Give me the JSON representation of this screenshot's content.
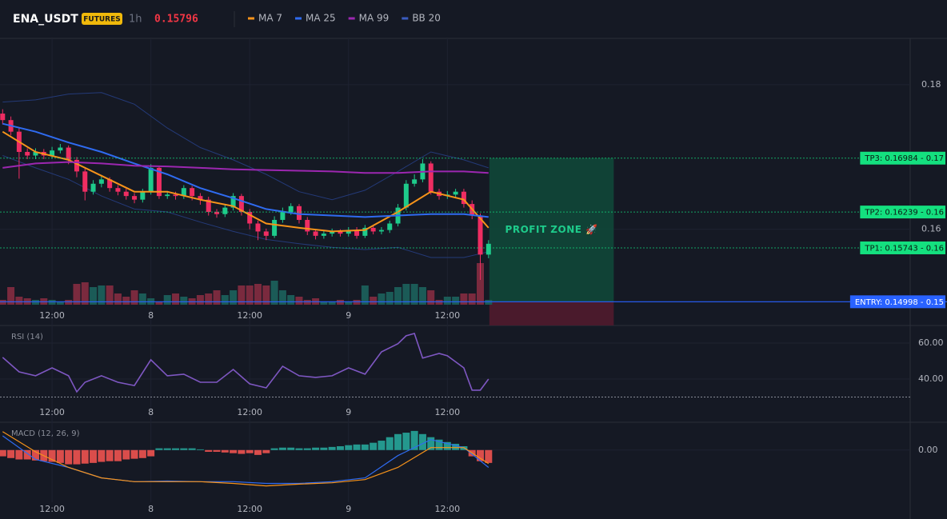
{
  "header": {
    "symbol": "ENA_USDT",
    "badge": "FUTURES",
    "interval": "1h",
    "price": "0.15796"
  },
  "chart_data": [
    {
      "type": "candlestick",
      "xlim": [
        -0.32,
        110.2
      ],
      "xticks": [
        {
          "value": 6,
          "label": "12:00"
        },
        {
          "value": 18,
          "label": "8"
        },
        {
          "value": 30,
          "label": "12:00"
        },
        {
          "value": 42,
          "label": "9"
        },
        {
          "value": 54,
          "label": "12:00"
        }
      ],
      "ylim": [
        0.1467,
        0.1864
      ],
      "yticks": [
        0.16,
        0.18
      ],
      "up_color": "#1ecb8b",
      "down_color": "#ef2d62",
      "open": [
        0.176,
        0.1751,
        0.1735,
        0.1707,
        0.1702,
        0.1707,
        0.1702,
        0.1709,
        0.1713,
        0.1696,
        0.168,
        0.1652,
        0.1663,
        0.1669,
        0.1657,
        0.1652,
        0.1646,
        0.1641,
        0.1652,
        0.1685,
        0.1646,
        0.1648,
        0.1646,
        0.1657,
        0.1646,
        0.1641,
        0.1624,
        0.1621,
        0.163,
        0.1646,
        0.1624,
        0.1608,
        0.1597,
        0.1591,
        0.1613,
        0.1624,
        0.1632,
        0.1613,
        0.1597,
        0.1591,
        0.1594,
        0.1597,
        0.1594,
        0.1599,
        0.1591,
        0.1602,
        0.1597,
        0.1599,
        0.1608,
        0.163,
        0.1663,
        0.1669,
        0.1691,
        0.1652,
        0.1646,
        0.1648,
        0.1652,
        0.1635,
        0.1619,
        0.1565
      ],
      "high": [
        0.1766,
        0.1756,
        0.174,
        0.1712,
        0.1712,
        0.1711,
        0.1714,
        0.1718,
        0.1716,
        0.17,
        0.1684,
        0.1668,
        0.1675,
        0.1672,
        0.1661,
        0.1656,
        0.165,
        0.1656,
        0.169,
        0.1688,
        0.1653,
        0.1652,
        0.1661,
        0.166,
        0.165,
        0.1645,
        0.1628,
        0.1635,
        0.165,
        0.1649,
        0.1628,
        0.1612,
        0.1601,
        0.1618,
        0.163,
        0.1636,
        0.1635,
        0.1617,
        0.16,
        0.1598,
        0.1601,
        0.16,
        0.1603,
        0.1603,
        0.1606,
        0.1605,
        0.1603,
        0.1612,
        0.1635,
        0.1668,
        0.1676,
        0.1697,
        0.1694,
        0.1656,
        0.1653,
        0.1656,
        0.1656,
        0.164,
        0.1622,
        0.1585
      ],
      "low": [
        0.1745,
        0.173,
        0.167,
        0.1697,
        0.1697,
        0.1697,
        0.1698,
        0.1705,
        0.169,
        0.1672,
        0.164,
        0.1648,
        0.1658,
        0.1652,
        0.1647,
        0.1641,
        0.1636,
        0.1637,
        0.1648,
        0.1642,
        0.1642,
        0.1641,
        0.1642,
        0.164,
        0.1634,
        0.1619,
        0.1616,
        0.1617,
        0.1626,
        0.1619,
        0.16,
        0.1585,
        0.1585,
        0.1588,
        0.1609,
        0.162,
        0.1608,
        0.1592,
        0.1586,
        0.1587,
        0.159,
        0.159,
        0.159,
        0.1587,
        0.1588,
        0.1593,
        0.1593,
        0.1595,
        0.1604,
        0.1626,
        0.1659,
        0.1665,
        0.1648,
        0.1641,
        0.1642,
        0.1644,
        0.163,
        0.1614,
        0.153,
        0.156
      ],
      "close": [
        0.1751,
        0.1735,
        0.1707,
        0.1702,
        0.1707,
        0.1702,
        0.1709,
        0.1713,
        0.1696,
        0.168,
        0.1652,
        0.1663,
        0.1669,
        0.1657,
        0.1652,
        0.1646,
        0.1641,
        0.1652,
        0.1685,
        0.1646,
        0.1648,
        0.1646,
        0.1657,
        0.1646,
        0.1641,
        0.1624,
        0.1621,
        0.163,
        0.1646,
        0.1624,
        0.1608,
        0.1597,
        0.1591,
        0.1613,
        0.1624,
        0.1632,
        0.1613,
        0.1597,
        0.1591,
        0.1594,
        0.1597,
        0.1594,
        0.1599,
        0.1591,
        0.1602,
        0.1597,
        0.1599,
        0.1608,
        0.163,
        0.1663,
        0.1669,
        0.1691,
        0.1652,
        0.1646,
        0.1648,
        0.1652,
        0.1635,
        0.1619,
        0.1565,
        0.158
      ],
      "volume": [
        6,
        22,
        10,
        8,
        6,
        8,
        6,
        4,
        6,
        26,
        28,
        22,
        24,
        24,
        14,
        10,
        18,
        14,
        8,
        4,
        12,
        14,
        10,
        8,
        12,
        14,
        18,
        12,
        18,
        24,
        24,
        26,
        24,
        30,
        18,
        12,
        10,
        6,
        8,
        4,
        4,
        6,
        4,
        6,
        24,
        10,
        14,
        16,
        22,
        26,
        26,
        22,
        18,
        6,
        10,
        10,
        14,
        14,
        52,
        6
      ],
      "volume_lim": [
        0,
        100
      ],
      "series": [
        {
          "name": "MA 7",
          "color": "#f7931a",
          "x": [
            0,
            4,
            8,
            12,
            16,
            20,
            24,
            28,
            32,
            36,
            40,
            44,
            48,
            52,
            56,
            59
          ],
          "values": [
            0.1735,
            0.1707,
            0.1696,
            0.1674,
            0.1652,
            0.1652,
            0.1641,
            0.1632,
            0.1608,
            0.1602,
            0.1597,
            0.1599,
            0.1624,
            0.1652,
            0.1641,
            0.1602
          ]
        },
        {
          "name": "MA 25",
          "color": "#2f6bf0",
          "x": [
            0,
            4,
            8,
            12,
            16,
            20,
            24,
            28,
            32,
            36,
            40,
            44,
            48,
            52,
            56,
            59
          ],
          "values": [
            0.1746,
            0.1735,
            0.172,
            0.1707,
            0.1691,
            0.1676,
            0.1657,
            0.1643,
            0.1628,
            0.1621,
            0.1619,
            0.1617,
            0.1619,
            0.1621,
            0.1621,
            0.1617
          ]
        },
        {
          "name": "MA 99",
          "color": "#9c27b0",
          "x": [
            0,
            4,
            8,
            12,
            16,
            20,
            24,
            28,
            32,
            36,
            40,
            44,
            48,
            52,
            56,
            59
          ],
          "values": [
            0.1685,
            0.1691,
            0.1693,
            0.1691,
            0.1688,
            0.1687,
            0.1685,
            0.1683,
            0.1682,
            0.1681,
            0.168,
            0.1678,
            0.1678,
            0.168,
            0.168,
            0.1678
          ]
        },
        {
          "name": "BB 20",
          "color": "#243a78",
          "x": [
            0,
            4,
            8,
            12,
            16,
            20,
            24,
            28,
            32,
            36,
            40,
            44,
            48,
            52,
            56,
            59
          ],
          "upper": [
            0.1776,
            0.1779,
            0.1787,
            0.1789,
            0.1773,
            0.174,
            0.1713,
            0.1696,
            0.1676,
            0.1652,
            0.1641,
            0.1654,
            0.168,
            0.1707,
            0.1696,
            0.1685
          ],
          "lower": [
            0.1702,
            0.1685,
            0.1669,
            0.1646,
            0.1628,
            0.1624,
            0.161,
            0.1597,
            0.1586,
            0.158,
            0.1575,
            0.1572,
            0.1575,
            0.1561,
            0.1561,
            0.1569
          ]
        }
      ],
      "levels": [
        {
          "label": "TP3: 0.16984 - 0.17",
          "price": 0.16984,
          "color": "#14e07f"
        },
        {
          "label": "TP2: 0.16239 - 0.16",
          "price": 0.16239,
          "color": "#14e07f"
        },
        {
          "label": "TP1: 0.15743 - 0.16",
          "price": 0.15743,
          "color": "#14e07f"
        },
        {
          "label": "ENTRY: 0.14998 - 0.15",
          "price": 0.14998,
          "color": "#2962ff"
        }
      ],
      "profit_zone": {
        "label": "PROFIT ZONE 🚀",
        "x": [
          59.1,
          74.2
        ]
      }
    },
    {
      "type": "line",
      "title": "RSI (14)",
      "color": "#7e57c2",
      "x": [
        0,
        2,
        4,
        6,
        8,
        9,
        10,
        12,
        14,
        16,
        18,
        20,
        22,
        24,
        26,
        28,
        30,
        32,
        34,
        36,
        38,
        40,
        42,
        44,
        46,
        48,
        49,
        50,
        51,
        52,
        53,
        54,
        56,
        57,
        58,
        59
      ],
      "values": [
        52.0,
        44.0,
        41.8,
        46.2,
        41.8,
        32.9,
        38.2,
        41.8,
        38.2,
        36.4,
        50.7,
        41.8,
        42.7,
        38.2,
        38.2,
        45.3,
        37.3,
        35.1,
        47.1,
        41.8,
        40.9,
        41.8,
        46.2,
        42.7,
        55.1,
        59.6,
        64.0,
        65.3,
        51.6,
        52.9,
        54.2,
        52.9,
        46.2,
        33.8,
        33.8,
        40.0
      ],
      "ylim": [
        16,
        69.3
      ],
      "yticks": [
        {
          "value": 60,
          "label": "60.00"
        },
        {
          "value": 40,
          "label": "40.00"
        }
      ],
      "level": 30
    },
    {
      "type": "macd",
      "title": "MACD (12, 26, 9)",
      "up_color": "#26a69a",
      "down_color": "#ef5350",
      "histogram": [
        -0.00018,
        -0.00023,
        -0.00027,
        -0.00027,
        -0.0003,
        -0.00032,
        -0.00034,
        -0.00037,
        -0.00041,
        -0.00041,
        -0.00039,
        -0.00037,
        -0.00034,
        -0.00032,
        -0.00032,
        -0.00027,
        -0.00025,
        -0.00023,
        -0.00018,
        5e-05,
        5e-05,
        5e-05,
        5e-05,
        5e-05,
        2e-05,
        -5e-05,
        -5e-05,
        -7e-05,
        -9e-05,
        -0.00011,
        -9e-05,
        -0.00014,
        -9e-05,
        5e-05,
        7e-05,
        7e-05,
        5e-05,
        5e-05,
        7e-05,
        7e-05,
        9e-05,
        0.00011,
        0.00014,
        0.00016,
        0.00016,
        0.00021,
        0.00027,
        0.00037,
        0.00046,
        0.0005,
        0.00055,
        0.00046,
        0.00037,
        0.0003,
        0.00023,
        0.00018,
        0.00011,
        -0.00018,
        -0.00032,
        -0.00037
      ],
      "x": [
        0,
        4,
        8,
        12,
        16,
        20,
        24,
        28,
        32,
        36,
        40,
        44,
        48,
        52,
        56,
        59
      ],
      "macd_line": {
        "color": "#2f6bf0",
        "values": [
          0.00041,
          -0.00027,
          -0.0005,
          -0.0008,
          -0.00091,
          -0.00089,
          -0.00091,
          -0.00091,
          -0.00096,
          -0.00096,
          -0.00091,
          -0.0008,
          -0.00016,
          0.0003,
          7e-05,
          -0.0005
        ]
      },
      "signal_line": {
        "color": "#f7931a",
        "values": [
          0.00053,
          -5e-05,
          -0.0005,
          -0.0008,
          -0.00091,
          -0.00091,
          -0.00091,
          -0.00096,
          -0.00103,
          -0.00098,
          -0.00094,
          -0.00085,
          -0.0005,
          7e-05,
          7e-05,
          -0.00039
        ]
      },
      "ylim": [
        -0.0015,
        0.0008
      ],
      "yticks": [
        {
          "value": 0,
          "label": "0.00"
        }
      ]
    }
  ]
}
